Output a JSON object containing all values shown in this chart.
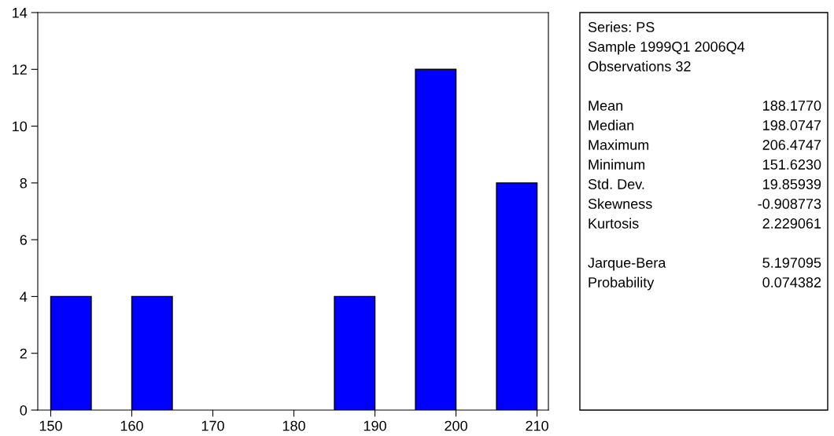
{
  "chart_data": {
    "type": "histogram",
    "bins": [
      150,
      155,
      160,
      165,
      170,
      175,
      180,
      185,
      190,
      195,
      200,
      205,
      210
    ],
    "values": [
      4,
      0,
      4,
      0,
      0,
      0,
      0,
      4,
      0,
      12,
      0,
      8
    ],
    "color": "#0000ff",
    "xlim": [
      148.4,
      211.4
    ],
    "xticks": [
      150,
      160,
      170,
      180,
      190,
      200,
      210
    ],
    "ylim": [
      0,
      14
    ],
    "yticks": [
      0,
      2,
      4,
      6,
      8,
      10,
      12,
      14
    ],
    "grid": false,
    "legend": false,
    "annotations": [
      "Series: PS\nSample 1999Q1 2006Q4\nObservations 32",
      "Mean\t188.1770\nMedian\t198.0747\nMaximum\t206.4747\nMinimum\t151.6230\nStd. Dev.\t19.85939\nSkewness\t-0.908773\nKurtosis\t2.229061",
      "Jarque-Bera\t5.197095\nProbability\t0.074382"
    ]
  }
}
